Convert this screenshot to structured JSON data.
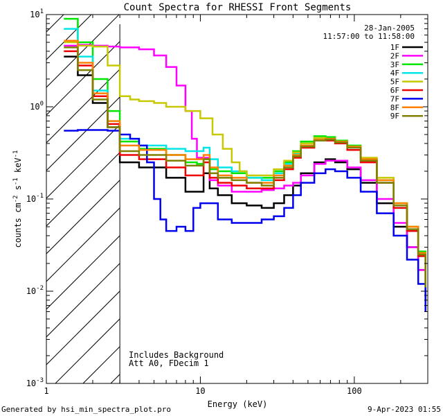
{
  "footer": {
    "generated_by": "Generated by hsi_min_spectra_plot.pro",
    "timestamp": "9-Apr-2023 01:55"
  },
  "chart_data": {
    "type": "line",
    "title": "Count Spectra for RHESSI Front Segments",
    "xlabel": "Energy (keV)",
    "ylabel_parts": [
      "counts cm",
      "-2",
      " s",
      "-1",
      " keV",
      "-1"
    ],
    "xscale": "log",
    "yscale": "log",
    "xlim": [
      1,
      300
    ],
    "ylim": [
      0.001,
      10
    ],
    "x_ticks": [
      {
        "value": 1,
        "label": "1"
      },
      {
        "value": 10,
        "label": "10"
      },
      {
        "value": 100,
        "label": "100"
      }
    ],
    "y_ticks": [
      {
        "value": 10,
        "base": "10",
        "exp": "1"
      },
      {
        "value": 1,
        "base": "10",
        "exp": "0"
      },
      {
        "value": 0.1,
        "base": "10",
        "exp": "-1"
      },
      {
        "value": 0.01,
        "base": "10",
        "exp": "-2"
      },
      {
        "value": 0.001,
        "base": "10",
        "exp": "-3"
      }
    ],
    "date": "28-Jan-2005",
    "time_range": "11:57:00 to 11:58:00",
    "hatched_region_keV": [
      1,
      3
    ],
    "vertical_line_keV": 3,
    "notes": [
      "Includes Background",
      "Att A0, FDecim 1"
    ],
    "series": [
      {
        "name": "1F",
        "color": "#000000",
        "x": [
          1.3,
          1.6,
          2.0,
          2.5,
          3.0,
          4.0,
          6.0,
          8.0,
          9.5,
          10.5,
          11.5,
          13,
          16,
          20,
          25,
          30,
          35,
          40,
          45,
          55,
          65,
          75,
          90,
          110,
          140,
          180,
          220,
          260,
          290
        ],
        "values": [
          3.5,
          2.2,
          1.1,
          0.6,
          0.25,
          0.22,
          0.17,
          0.12,
          0.12,
          0.19,
          0.13,
          0.11,
          0.09,
          0.085,
          0.08,
          0.09,
          0.11,
          0.14,
          0.19,
          0.25,
          0.27,
          0.25,
          0.21,
          0.15,
          0.09,
          0.05,
          0.03,
          0.017,
          0.008
        ]
      },
      {
        "name": "2F",
        "color": "#ff00ff",
        "x": [
          1.3,
          1.6,
          2.0,
          2.5,
          3.0,
          4.0,
          5.0,
          6.0,
          7.0,
          8.0,
          8.8,
          9.5,
          10.5,
          11.5,
          13,
          16,
          20,
          25,
          30,
          35,
          40,
          45,
          55,
          65,
          75,
          90,
          110,
          140,
          180,
          220,
          260,
          290
        ],
        "values": [
          4.6,
          4.7,
          4.6,
          4.5,
          4.4,
          4.2,
          3.6,
          2.7,
          1.7,
          0.9,
          0.45,
          0.28,
          0.28,
          0.16,
          0.14,
          0.12,
          0.12,
          0.125,
          0.13,
          0.14,
          0.15,
          0.18,
          0.24,
          0.26,
          0.26,
          0.22,
          0.16,
          0.1,
          0.055,
          0.03,
          0.017,
          0.009
        ]
      },
      {
        "name": "3F",
        "color": "#00e600",
        "x": [
          1.3,
          1.6,
          2.0,
          2.5,
          3.0,
          4.0,
          6.0,
          8.0,
          9.5,
          10.5,
          11.5,
          13,
          16,
          20,
          25,
          30,
          35,
          40,
          45,
          55,
          65,
          75,
          90,
          110,
          140,
          180,
          220,
          260,
          290
        ],
        "values": [
          9.0,
          5.0,
          2.0,
          0.9,
          0.42,
          0.35,
          0.3,
          0.25,
          0.24,
          0.27,
          0.21,
          0.2,
          0.19,
          0.17,
          0.17,
          0.2,
          0.25,
          0.33,
          0.42,
          0.48,
          0.47,
          0.43,
          0.38,
          0.27,
          0.16,
          0.09,
          0.05,
          0.027,
          0.012
        ]
      },
      {
        "name": "4F",
        "color": "#00e5e5",
        "x": [
          1.3,
          1.6,
          2.0,
          2.5,
          3.0,
          4.0,
          6.0,
          8.0,
          9.5,
          10.5,
          11.5,
          13,
          16,
          20,
          25,
          30,
          35,
          40,
          45,
          55,
          65,
          75,
          90,
          110,
          140,
          180,
          220,
          260,
          290
        ],
        "values": [
          7.0,
          3.5,
          1.5,
          0.7,
          0.45,
          0.38,
          0.35,
          0.33,
          0.33,
          0.36,
          0.27,
          0.22,
          0.2,
          0.17,
          0.16,
          0.19,
          0.24,
          0.31,
          0.4,
          0.45,
          0.45,
          0.42,
          0.36,
          0.26,
          0.15,
          0.08,
          0.045,
          0.024,
          0.011
        ]
      },
      {
        "name": "5F",
        "color": "#c8c800",
        "x": [
          1.3,
          1.6,
          2.0,
          2.5,
          3.0,
          3.5,
          4.0,
          5.0,
          6.0,
          8.0,
          10.0,
          12,
          14,
          16,
          18,
          20,
          25,
          30,
          35,
          40,
          45,
          55,
          65,
          75,
          90,
          110,
          140,
          180,
          220,
          260,
          290
        ],
        "values": [
          5.0,
          4.6,
          4.5,
          2.8,
          1.3,
          1.2,
          1.15,
          1.1,
          1.0,
          0.9,
          0.75,
          0.5,
          0.35,
          0.25,
          0.2,
          0.18,
          0.18,
          0.21,
          0.26,
          0.32,
          0.4,
          0.46,
          0.45,
          0.42,
          0.37,
          0.28,
          0.17,
          0.09,
          0.05,
          0.025,
          0.012
        ]
      },
      {
        "name": "6F",
        "color": "#ee0000",
        "x": [
          1.3,
          1.6,
          2.0,
          2.5,
          3.0,
          4.0,
          6.0,
          8.0,
          9.5,
          10.5,
          11.5,
          13,
          16,
          20,
          25,
          30,
          35,
          40,
          45,
          55,
          65,
          75,
          90,
          110,
          140,
          180,
          220,
          260,
          290
        ],
        "values": [
          4.0,
          2.8,
          1.3,
          0.65,
          0.3,
          0.27,
          0.22,
          0.18,
          0.18,
          0.25,
          0.17,
          0.15,
          0.14,
          0.13,
          0.13,
          0.16,
          0.21,
          0.28,
          0.36,
          0.43,
          0.43,
          0.4,
          0.34,
          0.25,
          0.15,
          0.08,
          0.045,
          0.024,
          0.011
        ]
      },
      {
        "name": "7F",
        "color": "#0000ee",
        "x": [
          1.3,
          1.6,
          2.0,
          2.5,
          3.0,
          3.5,
          4.0,
          4.5,
          5.0,
          5.5,
          6.0,
          7.0,
          8.0,
          9.0,
          10.0,
          11.0,
          13,
          16,
          20,
          25,
          30,
          35,
          40,
          45,
          55,
          65,
          75,
          90,
          110,
          140,
          180,
          220,
          260,
          290
        ],
        "values": [
          0.55,
          0.56,
          0.56,
          0.55,
          0.5,
          0.45,
          0.38,
          0.25,
          0.1,
          0.06,
          0.045,
          0.05,
          0.045,
          0.08,
          0.09,
          0.09,
          0.06,
          0.055,
          0.055,
          0.06,
          0.065,
          0.08,
          0.11,
          0.15,
          0.19,
          0.21,
          0.2,
          0.17,
          0.12,
          0.07,
          0.04,
          0.022,
          0.012,
          0.006
        ]
      },
      {
        "name": "8F",
        "color": "#ff8000",
        "x": [
          1.3,
          1.6,
          2.0,
          2.5,
          3.0,
          4.0,
          6.0,
          8.0,
          9.5,
          10.5,
          11.5,
          13,
          16,
          20,
          25,
          30,
          35,
          40,
          45,
          55,
          65,
          75,
          90,
          110,
          140,
          180,
          220,
          260,
          290
        ],
        "values": [
          5.2,
          3.0,
          1.4,
          0.7,
          0.38,
          0.34,
          0.3,
          0.27,
          0.27,
          0.3,
          0.22,
          0.18,
          0.17,
          0.15,
          0.15,
          0.18,
          0.23,
          0.3,
          0.38,
          0.44,
          0.45,
          0.42,
          0.37,
          0.27,
          0.16,
          0.09,
          0.05,
          0.026,
          0.012
        ]
      },
      {
        "name": "9F",
        "color": "#808000",
        "x": [
          1.3,
          1.6,
          2.0,
          2.5,
          3.0,
          4.0,
          6.0,
          8.0,
          9.5,
          10.5,
          11.5,
          13,
          16,
          20,
          25,
          30,
          35,
          40,
          45,
          55,
          65,
          75,
          90,
          110,
          140,
          180,
          220,
          260,
          290
        ],
        "values": [
          4.4,
          2.5,
          1.2,
          0.6,
          0.33,
          0.3,
          0.26,
          0.23,
          0.23,
          0.27,
          0.19,
          0.17,
          0.16,
          0.15,
          0.14,
          0.17,
          0.22,
          0.29,
          0.37,
          0.43,
          0.44,
          0.41,
          0.36,
          0.26,
          0.15,
          0.085,
          0.047,
          0.025,
          0.011
        ]
      }
    ]
  }
}
